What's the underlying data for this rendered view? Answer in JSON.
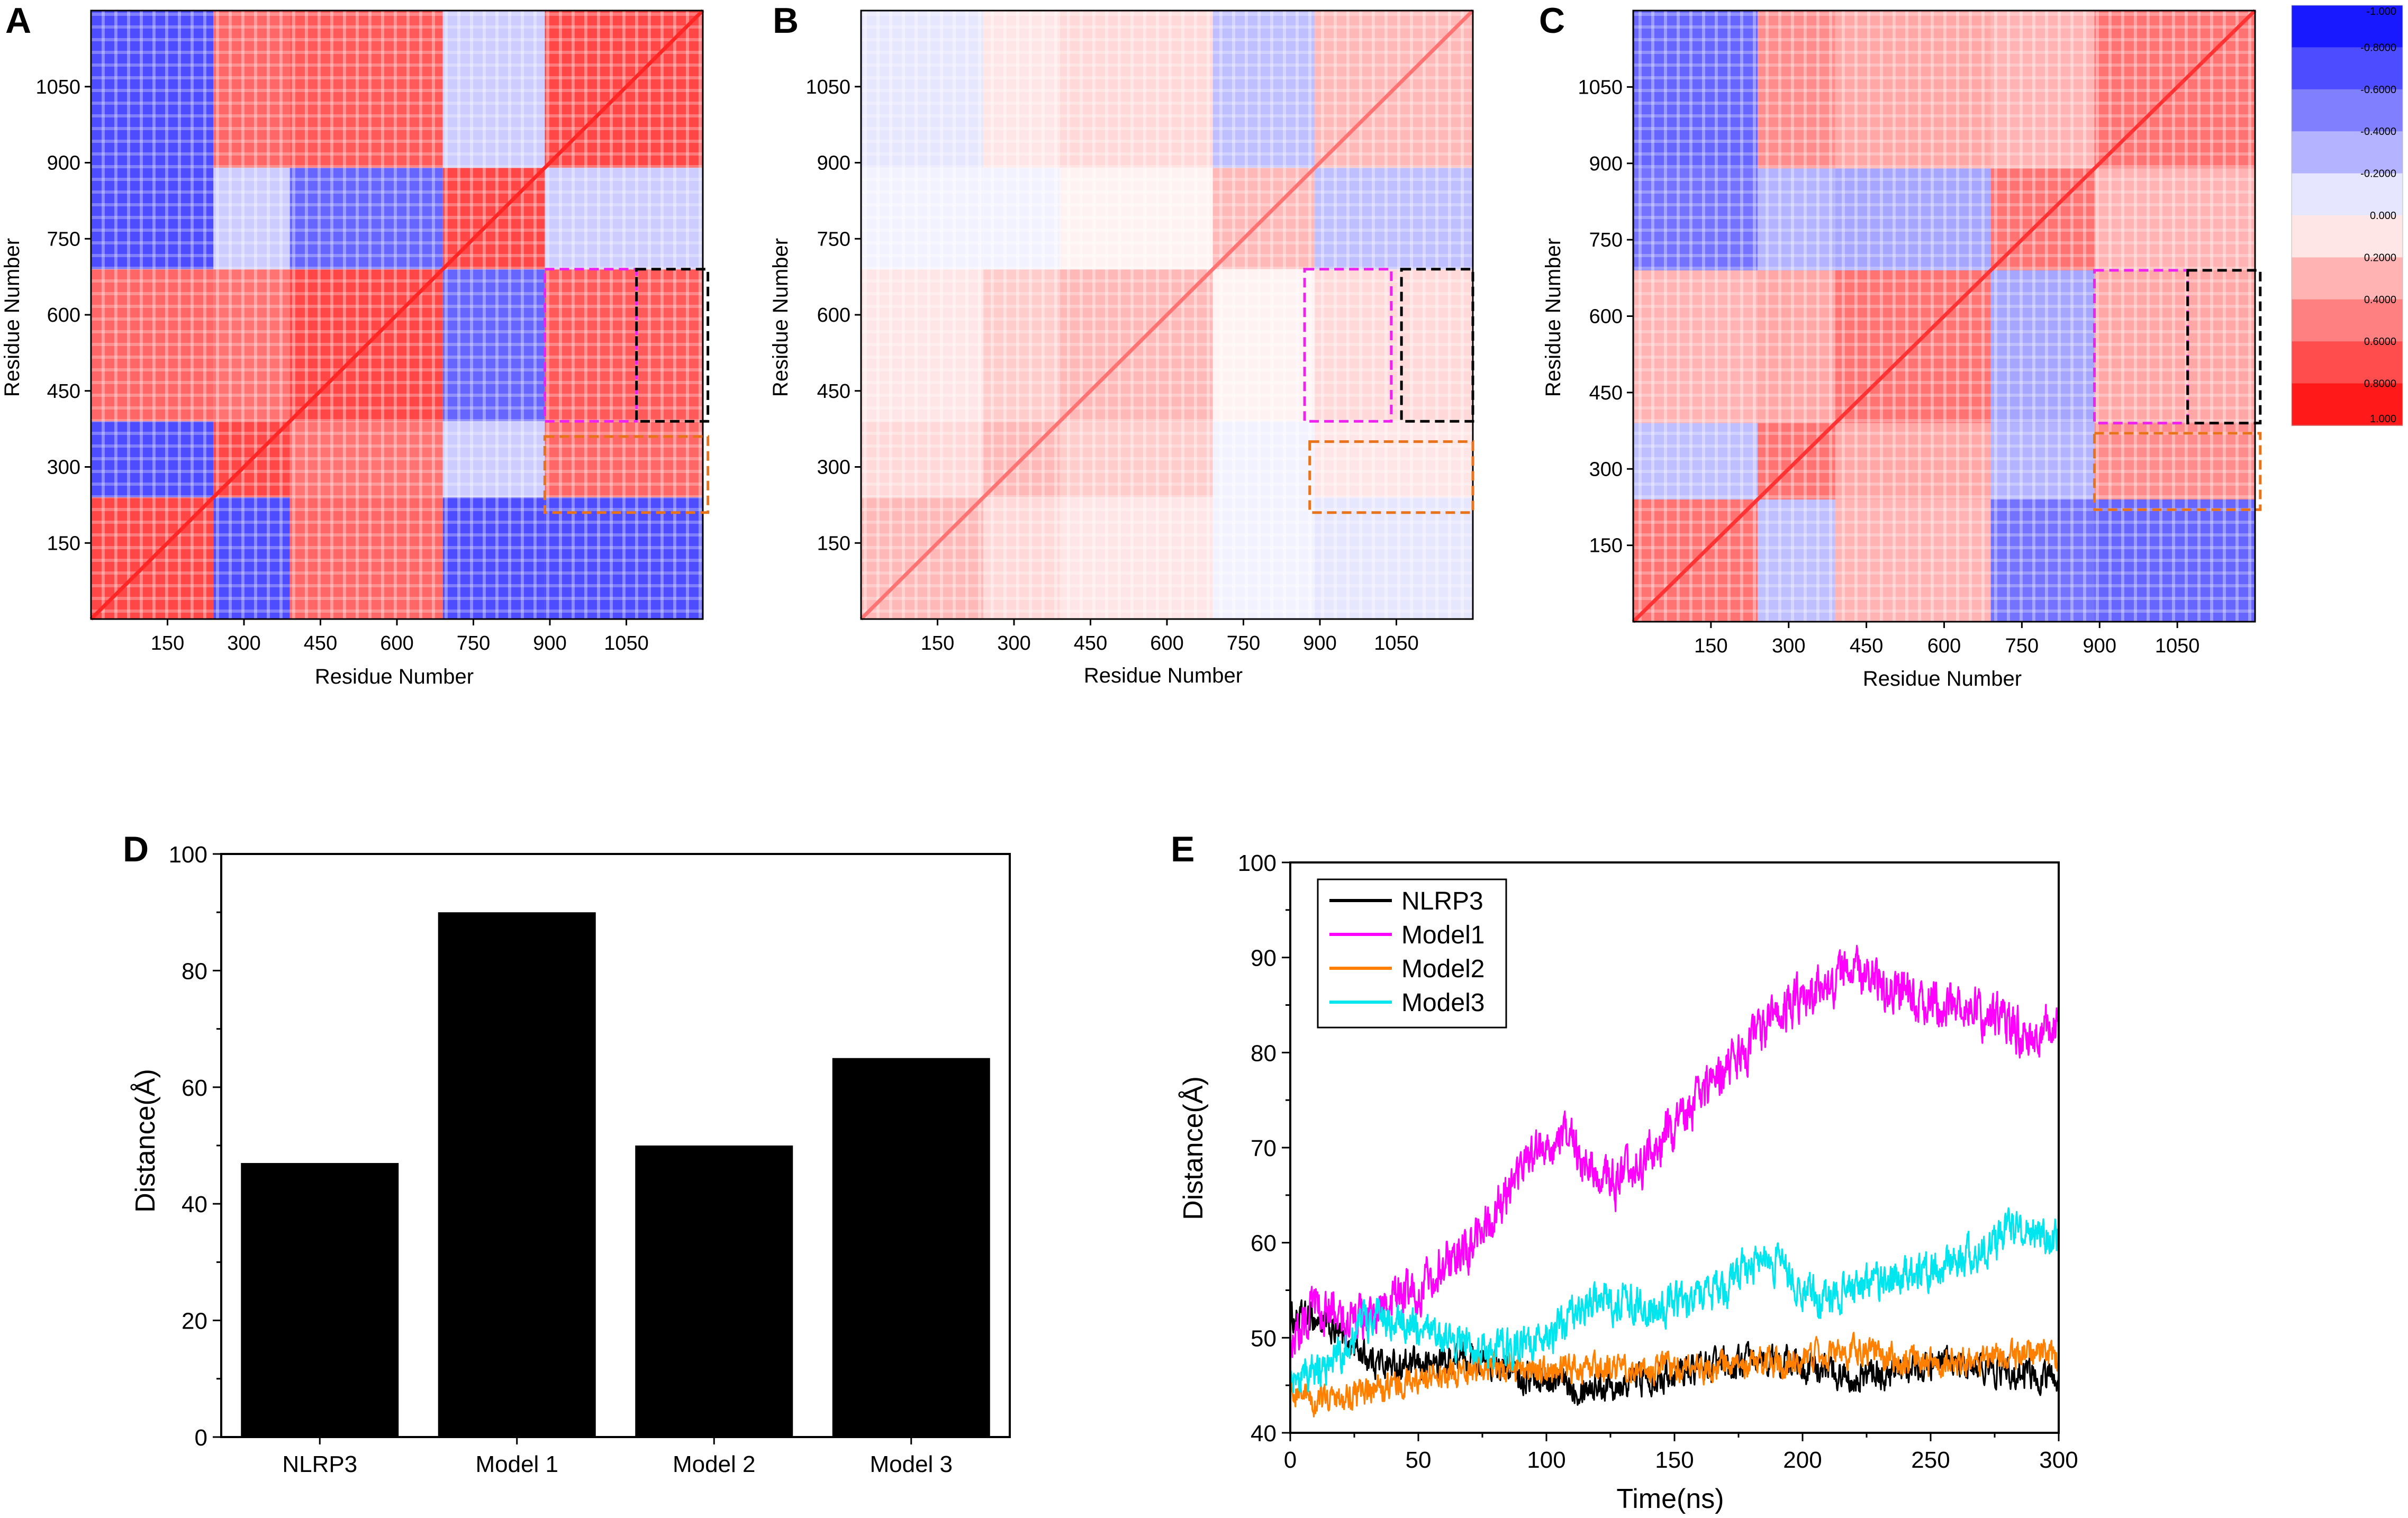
{
  "panels": {
    "A": {
      "label": "A"
    },
    "B": {
      "label": "B"
    },
    "C": {
      "label": "C"
    },
    "D": {
      "label": "D"
    },
    "E": {
      "label": "E"
    }
  },
  "colors": {
    "negative": "#0000ff",
    "neutral": "#ffffff",
    "positive": "#ff0000",
    "box_magenta": "#ee22ee",
    "box_black": "#000000",
    "box_orange": "#e8731a",
    "NLRP3": "#000000",
    "Model1": "#ff00ff",
    "Model2": "#ff8000",
    "Model3": "#00e5ee"
  },
  "chart_data": [
    {
      "id": "A",
      "type": "heatmap",
      "title": "",
      "xlabel": "Residue Number",
      "ylabel": "Residue Number",
      "xticks": [
        "150",
        "300",
        "450",
        "600",
        "750",
        "900",
        "1050"
      ],
      "yticks": [
        "150",
        "300",
        "450",
        "600",
        "750",
        "900",
        "1050"
      ],
      "xlim": [
        0,
        1200
      ],
      "ylim": [
        0,
        1200
      ],
      "domain_bounds": [
        0,
        240,
        390,
        690,
        890,
        1200
      ],
      "corr_profile": "strong",
      "highlight_boxes": [
        {
          "color": "box_magenta",
          "x": [
            890,
            1070
          ],
          "y": [
            390,
            690
          ]
        },
        {
          "color": "box_black",
          "x": [
            1070,
            1210
          ],
          "y": [
            390,
            690
          ]
        },
        {
          "color": "box_orange",
          "x": [
            890,
            1210
          ],
          "y": [
            210,
            360
          ]
        }
      ]
    },
    {
      "id": "B",
      "type": "heatmap",
      "title": "",
      "xlabel": "Residue Number",
      "ylabel": "Residue Number",
      "xticks": [
        "150",
        "300",
        "450",
        "600",
        "750",
        "900",
        "1050"
      ],
      "yticks": [
        "150",
        "300",
        "450",
        "600",
        "750",
        "900",
        "1050"
      ],
      "xlim": [
        0,
        1200
      ],
      "ylim": [
        0,
        1200
      ],
      "domain_bounds": [
        0,
        240,
        390,
        690,
        890,
        1200
      ],
      "corr_profile": "weak",
      "highlight_boxes": [
        {
          "color": "box_magenta",
          "x": [
            870,
            1040
          ],
          "y": [
            390,
            690
          ]
        },
        {
          "color": "box_black",
          "x": [
            1060,
            1200
          ],
          "y": [
            390,
            690
          ]
        },
        {
          "color": "box_orange",
          "x": [
            880,
            1200
          ],
          "y": [
            210,
            350
          ]
        }
      ]
    },
    {
      "id": "C",
      "type": "heatmap",
      "title": "",
      "xlabel": "Residue Number",
      "ylabel": "Residue Number",
      "xticks": [
        "150",
        "300",
        "450",
        "600",
        "750",
        "900",
        "1050"
      ],
      "yticks": [
        "150",
        "300",
        "450",
        "600",
        "750",
        "900",
        "1050"
      ],
      "xlim": [
        0,
        1200
      ],
      "ylim": [
        0,
        1200
      ],
      "domain_bounds": [
        0,
        240,
        390,
        690,
        890,
        1200
      ],
      "corr_profile": "medium",
      "highlight_boxes": [
        {
          "color": "box_magenta",
          "x": [
            890,
            1070
          ],
          "y": [
            390,
            690
          ]
        },
        {
          "color": "box_black",
          "x": [
            1070,
            1210
          ],
          "y": [
            390,
            690
          ]
        },
        {
          "color": "box_orange",
          "x": [
            890,
            1210
          ],
          "y": [
            220,
            370
          ]
        }
      ]
    },
    {
      "id": "colorbar",
      "type": "colorbar",
      "levels": [
        "-1.000",
        "-0.8000",
        "-0.6000",
        "-0.4000",
        "-0.2000",
        "0.000",
        "0.2000",
        "0.4000",
        "0.6000",
        "0.8000",
        "1.000"
      ],
      "level_values": [
        -1.0,
        -0.8,
        -0.6,
        -0.4,
        -0.2,
        0.0,
        0.2,
        0.4,
        0.6,
        0.8,
        1.0
      ]
    },
    {
      "id": "D",
      "type": "bar",
      "title": "",
      "xlabel": "",
      "ylabel": "Distance(Å)",
      "categories": [
        "NLRP3",
        "Model 1",
        "Model 2",
        "Model 3"
      ],
      "values": [
        47,
        90,
        50,
        65
      ],
      "ylim": [
        0,
        100
      ],
      "yticks": [
        "0",
        "20",
        "40",
        "60",
        "80",
        "100"
      ],
      "ytick_values": [
        0,
        20,
        40,
        60,
        80,
        100
      ]
    },
    {
      "id": "E",
      "type": "line",
      "title": "",
      "xlabel": "Time(ns)",
      "ylabel": "Distance(Å)",
      "xlim": [
        0,
        300
      ],
      "ylim": [
        40,
        100
      ],
      "xticks": [
        "0",
        "50",
        "100",
        "150",
        "200",
        "250",
        "300"
      ],
      "xtick_values": [
        0,
        50,
        100,
        150,
        200,
        250,
        300
      ],
      "yticks": [
        "40",
        "50",
        "60",
        "70",
        "80",
        "90",
        "100"
      ],
      "ytick_values": [
        40,
        50,
        60,
        70,
        80,
        90,
        100
      ],
      "legend_position": "top-left",
      "series": [
        {
          "name": "NLRP3",
          "color": "NLRP3",
          "x": [
            0,
            10,
            20,
            30,
            40,
            50,
            60,
            70,
            80,
            90,
            100,
            110,
            120,
            130,
            140,
            150,
            160,
            170,
            180,
            190,
            200,
            210,
            220,
            230,
            240,
            250,
            260,
            270,
            280,
            290,
            300
          ],
          "y": [
            52,
            52,
            50,
            48,
            47,
            47,
            47.5,
            48,
            47,
            46,
            45.5,
            45,
            45,
            45.5,
            46,
            46.5,
            47,
            47,
            47.5,
            47.5,
            47,
            46.5,
            46,
            46,
            46.5,
            47,
            47,
            47,
            46.5,
            46,
            46
          ],
          "noise": 1.6
        },
        {
          "name": "Model1",
          "color": "Model1",
          "x": [
            0,
            10,
            20,
            30,
            40,
            50,
            60,
            70,
            80,
            90,
            100,
            110,
            120,
            130,
            140,
            150,
            160,
            170,
            180,
            190,
            200,
            210,
            220,
            230,
            240,
            250,
            260,
            270,
            280,
            290,
            300
          ],
          "y": [
            50,
            53,
            52,
            52,
            54,
            55,
            58,
            59,
            63,
            68,
            71,
            70,
            67,
            66,
            69,
            72,
            75,
            78,
            81,
            84,
            86,
            87,
            89,
            87,
            86,
            85,
            85,
            84,
            83,
            82,
            83
          ],
          "noise": 2.4
        },
        {
          "name": "Model2",
          "color": "Model2",
          "x": [
            0,
            10,
            20,
            30,
            40,
            50,
            60,
            70,
            80,
            90,
            100,
            110,
            120,
            130,
            140,
            150,
            160,
            170,
            180,
            190,
            200,
            210,
            220,
            230,
            240,
            250,
            260,
            270,
            280,
            290,
            300
          ],
          "y": [
            45,
            43,
            44,
            44,
            45,
            45.5,
            46,
            46.5,
            47,
            46.5,
            46.5,
            46.5,
            46.5,
            46.5,
            46.5,
            47,
            47,
            47,
            47.5,
            47.5,
            47.5,
            48,
            49,
            48,
            47.5,
            47.5,
            47.5,
            47.5,
            48,
            48,
            48
          ],
          "noise": 1.5
        },
        {
          "name": "Model3",
          "color": "Model3",
          "x": [
            0,
            10,
            20,
            30,
            40,
            50,
            60,
            70,
            80,
            90,
            100,
            110,
            120,
            130,
            140,
            150,
            160,
            170,
            180,
            190,
            200,
            210,
            220,
            230,
            240,
            250,
            260,
            270,
            280,
            290,
            300
          ],
          "y": [
            45,
            46,
            49,
            52,
            52,
            51,
            50,
            49,
            49,
            49,
            50,
            52,
            54,
            54,
            53,
            54,
            54,
            55,
            58,
            58,
            55,
            54,
            55,
            56,
            57,
            57,
            58,
            59,
            61,
            61,
            60
          ],
          "noise": 2.0
        }
      ]
    }
  ]
}
